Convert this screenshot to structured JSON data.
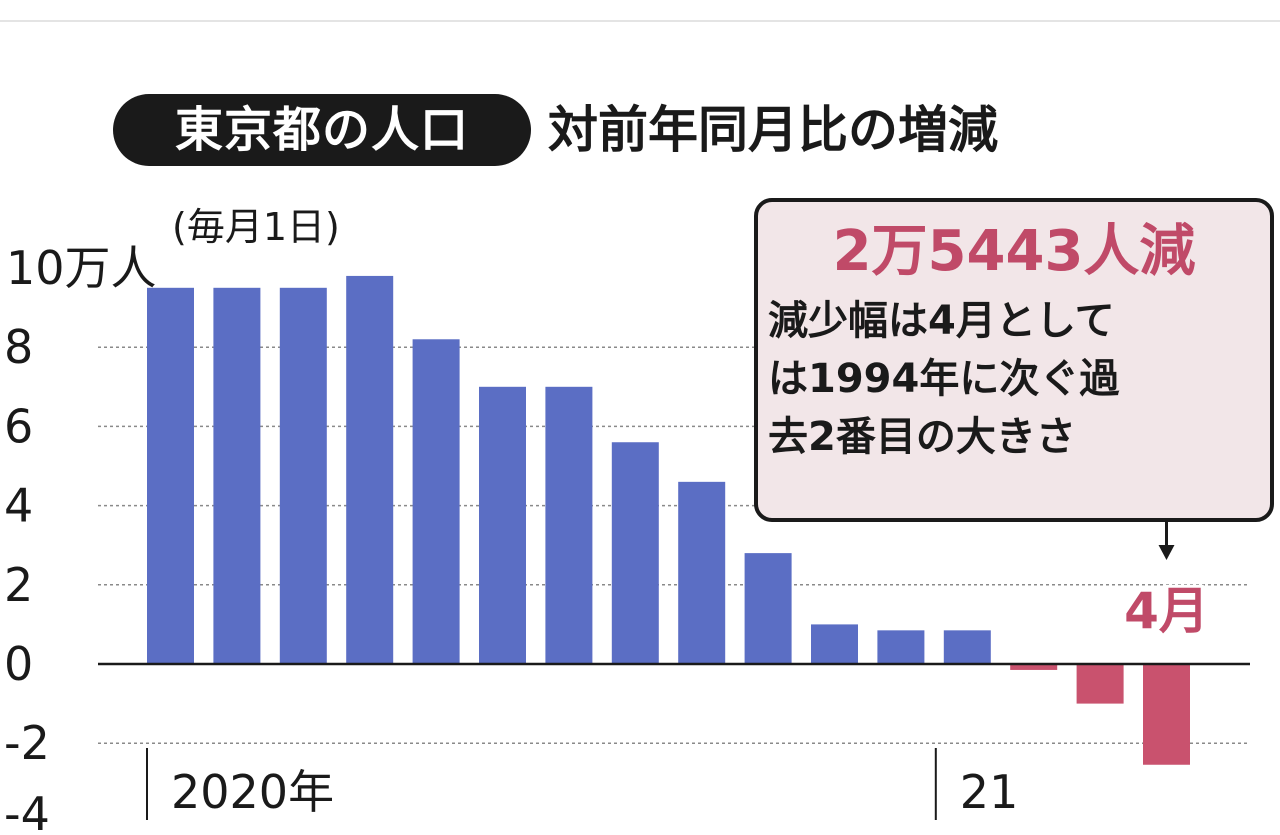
{
  "title_badge": "東京都の人口",
  "title": "対前年同月比の増減",
  "subtitle": "(毎月1日)",
  "annotation": {
    "headline": "2万5443人減",
    "body": [
      "減少幅は4月として",
      "は1994年に次ぐ過",
      "去2番目の大きさ"
    ],
    "month_label": "4月"
  },
  "colors": {
    "positive": "#5b6ec4",
    "negative": "#c9526e",
    "callout_bg": "#f2e6e8",
    "accent": "#c04a68"
  },
  "chart_data": {
    "type": "bar",
    "ylabel": "10万人",
    "y_unit": "万人",
    "ylim": [
      -4,
      10
    ],
    "yticks": [
      10,
      8,
      6,
      4,
      2,
      0,
      -2,
      -4
    ],
    "grid": true,
    "categories": [
      "2020-01",
      "2020-02",
      "2020-03",
      "2020-04",
      "2020-05",
      "2020-06",
      "2020-07",
      "2020-08",
      "2020-09",
      "2020-10",
      "2020-11",
      "2020-12",
      "2021-01",
      "2021-02",
      "2021-03",
      "2021-04"
    ],
    "values": [
      9.5,
      9.5,
      9.5,
      9.8,
      8.2,
      7.0,
      7.0,
      5.6,
      4.6,
      2.8,
      1.0,
      0.85,
      0.85,
      -0.15,
      -1.0,
      -2.5443
    ],
    "year_labels": [
      {
        "label": "2020年",
        "start": "2020-01"
      },
      {
        "label": "21",
        "start": "2021-01"
      }
    ]
  }
}
